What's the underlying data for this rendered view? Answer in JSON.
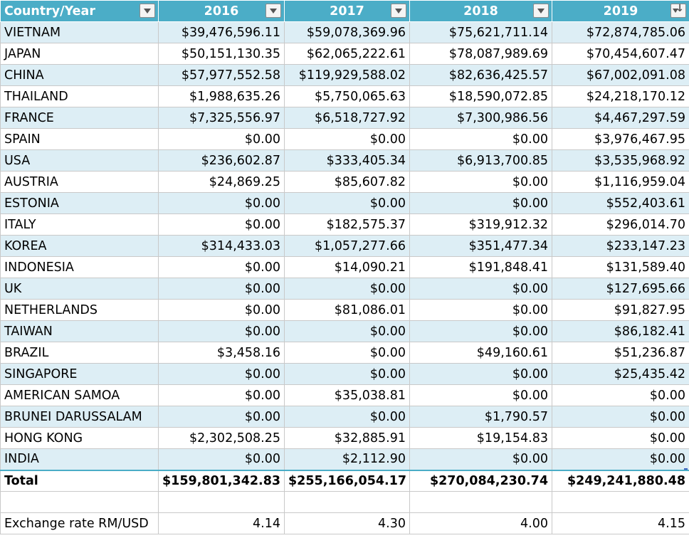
{
  "header": {
    "country_label": "Country/Year",
    "years": [
      "2016",
      "2017",
      "2018",
      "2019"
    ]
  },
  "rows": [
    {
      "country": "VIETNAM",
      "v": [
        "$39,476,596.11",
        "$59,078,369.96",
        "$75,621,711.14",
        "$72,874,785.06"
      ]
    },
    {
      "country": "JAPAN",
      "v": [
        "$50,151,130.35",
        "$62,065,222.61",
        "$78,087,989.69",
        "$70,454,607.47"
      ]
    },
    {
      "country": "CHINA",
      "v": [
        "$57,977,552.58",
        "$119,929,588.02",
        "$82,636,425.57",
        "$67,002,091.08"
      ]
    },
    {
      "country": "THAILAND",
      "v": [
        "$1,988,635.26",
        "$5,750,065.63",
        "$18,590,072.85",
        "$24,218,170.12"
      ]
    },
    {
      "country": "FRANCE",
      "v": [
        "$7,325,556.97",
        "$6,518,727.92",
        "$7,300,986.56",
        "$4,467,297.59"
      ]
    },
    {
      "country": "SPAIN",
      "v": [
        "$0.00",
        "$0.00",
        "$0.00",
        "$3,976,467.95"
      ]
    },
    {
      "country": "USA",
      "v": [
        "$236,602.87",
        "$333,405.34",
        "$6,913,700.85",
        "$3,535,968.92"
      ]
    },
    {
      "country": "AUSTRIA",
      "v": [
        "$24,869.25",
        "$85,607.82",
        "$0.00",
        "$1,116,959.04"
      ]
    },
    {
      "country": "ESTONIA",
      "v": [
        "$0.00",
        "$0.00",
        "$0.00",
        "$552,403.61"
      ]
    },
    {
      "country": "ITALY",
      "v": [
        "$0.00",
        "$182,575.37",
        "$319,912.32",
        "$296,014.70"
      ]
    },
    {
      "country": "KOREA",
      "v": [
        "$314,433.03",
        "$1,057,277.66",
        "$351,477.34",
        "$233,147.23"
      ]
    },
    {
      "country": "INDONESIA",
      "v": [
        "$0.00",
        "$14,090.21",
        "$191,848.41",
        "$131,589.40"
      ]
    },
    {
      "country": "UK",
      "v": [
        "$0.00",
        "$0.00",
        "$0.00",
        "$127,695.66"
      ]
    },
    {
      "country": "NETHERLANDS",
      "v": [
        "$0.00",
        "$81,086.01",
        "$0.00",
        "$91,827.95"
      ]
    },
    {
      "country": "TAIWAN",
      "v": [
        "$0.00",
        "$0.00",
        "$0.00",
        "$86,182.41"
      ]
    },
    {
      "country": "BRAZIL",
      "v": [
        "$3,458.16",
        "$0.00",
        "$49,160.61",
        "$51,236.87"
      ]
    },
    {
      "country": "SINGAPORE",
      "v": [
        "$0.00",
        "$0.00",
        "$0.00",
        "$25,435.42"
      ]
    },
    {
      "country": "AMERICAN SAMOA",
      "v": [
        "$0.00",
        "$35,038.81",
        "$0.00",
        "$0.00"
      ]
    },
    {
      "country": "BRUNEI DARUSSALAM",
      "v": [
        "$0.00",
        "$0.00",
        "$1,790.57",
        "$0.00"
      ]
    },
    {
      "country": "HONG KONG",
      "v": [
        "$2,302,508.25",
        "$32,885.91",
        "$19,154.83",
        "$0.00"
      ]
    },
    {
      "country": "INDIA",
      "v": [
        "$0.00",
        "$2,112.90",
        "$0.00",
        "$0.00"
      ]
    }
  ],
  "total": {
    "label": "Total",
    "v": [
      "$159,801,342.83",
      "$255,166,054.17",
      "$270,084,230.74",
      "$249,241,880.48"
    ]
  },
  "exchange": {
    "label": "Exchange rate RM/USD",
    "v": [
      "4.14",
      "4.30",
      "4.00",
      "4.15"
    ]
  },
  "colors": {
    "header_bg": "#4badc7",
    "band_bg": "#ddeef5",
    "grid": "#c9c9c9"
  },
  "icons": {
    "filter": "filter-dropdown-icon",
    "sorted_filter": "sort-descending-filter-icon"
  }
}
